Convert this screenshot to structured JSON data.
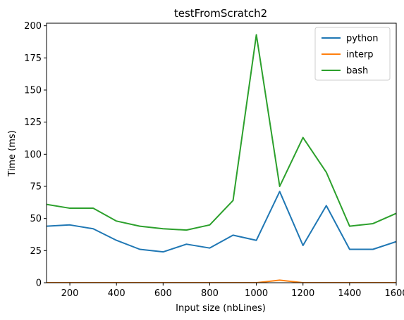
{
  "chart_data": {
    "type": "line",
    "title": "testFromScratch2",
    "xlabel": "Input size (nbLines)",
    "ylabel": "Time (ms)",
    "xlim": [
      100,
      1600
    ],
    "ylim": [
      0,
      202
    ],
    "xticks": [
      200,
      400,
      600,
      800,
      1000,
      1200,
      1400,
      1600
    ],
    "yticks": [
      0,
      25,
      50,
      75,
      100,
      125,
      150,
      175,
      200
    ],
    "grid": false,
    "legend_position": "top-right",
    "x": [
      100,
      200,
      300,
      400,
      500,
      600,
      700,
      800,
      900,
      1000,
      1100,
      1200,
      1300,
      1400,
      1500,
      1600
    ],
    "series": [
      {
        "name": "python",
        "color": "#1f77b4",
        "values": [
          44,
          45,
          42,
          33,
          26,
          24,
          30,
          27,
          37,
          33,
          71,
          29,
          60,
          26,
          26,
          32
        ]
      },
      {
        "name": "interp",
        "color": "#ff7f0e",
        "values": [
          0,
          0,
          0,
          0,
          0,
          0,
          0,
          0,
          0,
          0,
          2,
          0,
          0,
          0,
          0,
          0
        ]
      },
      {
        "name": "bash",
        "color": "#2ca02c",
        "values": [
          61,
          58,
          58,
          48,
          44,
          42,
          41,
          45,
          64,
          193,
          75,
          113,
          86,
          44,
          46,
          54
        ]
      }
    ]
  }
}
